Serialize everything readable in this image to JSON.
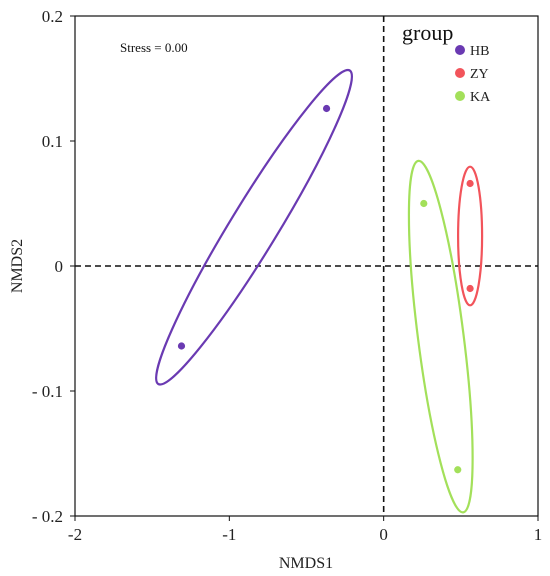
{
  "chart_data": {
    "type": "scatter",
    "xlabel": "NMDS1",
    "ylabel": "NMDS2",
    "xlim": [
      -2,
      1
    ],
    "ylim": [
      -0.2,
      0.2
    ],
    "xticks": [
      -2,
      -1,
      0,
      1
    ],
    "yticks": [
      0.2,
      0.1,
      0,
      -0.1,
      -0.2
    ],
    "xtick_labels": [
      "-2",
      "-1",
      "0",
      "1"
    ],
    "ytick_labels": [
      "0.2",
      "0.1",
      "0",
      "- 0.1",
      "- 0.2"
    ],
    "annotation": "Stress = 0.00",
    "reference_lines": {
      "x": 0,
      "y": 0,
      "style": "dashed"
    },
    "grid": false,
    "legend": {
      "title": "group",
      "position": "top-right"
    },
    "series": [
      {
        "name": "HB",
        "color": "#6a3ab2",
        "points": [
          [
            -0.37,
            0.126
          ],
          [
            -1.31,
            -0.064
          ]
        ]
      },
      {
        "name": "ZY",
        "color": "#f2545b",
        "points": [
          [
            0.56,
            0.066
          ],
          [
            0.56,
            -0.018
          ]
        ]
      },
      {
        "name": "KA",
        "color": "#a3e05a",
        "points": [
          [
            0.26,
            0.05
          ],
          [
            0.48,
            -0.163
          ]
        ]
      }
    ]
  }
}
